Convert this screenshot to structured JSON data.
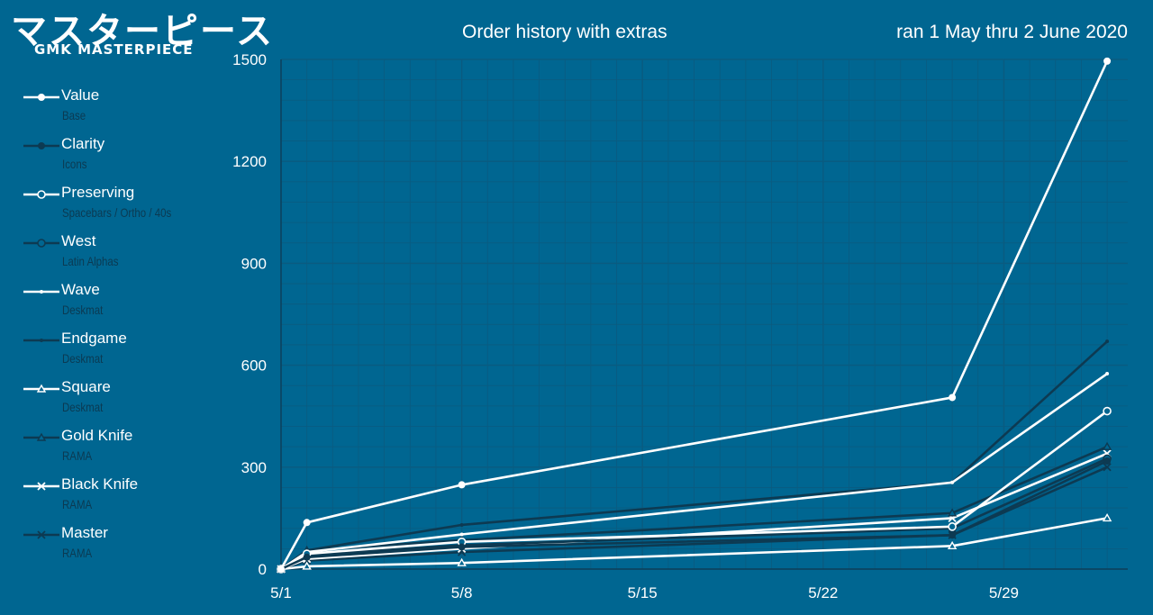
{
  "logo": {
    "japanese": "マスターピース",
    "english": "GMK MASTERPIECE"
  },
  "colors": {
    "background": "#006691",
    "white_series": "#ffffff",
    "dark_series": "#0d3a52",
    "grid": "#0a5b80"
  },
  "chart_data": {
    "type": "line",
    "title": "Order history with extras",
    "subtitle": "ran 1 May thru 2 June 2020",
    "xlabel": "",
    "ylabel": "",
    "x": [
      "5/1",
      "5/2",
      "5/8",
      "5/27",
      "6/2"
    ],
    "x_ticks": [
      "5/1",
      "5/8",
      "5/15",
      "5/22",
      "5/29"
    ],
    "y_ticks": [
      0,
      300,
      600,
      900,
      1200,
      1500
    ],
    "ylim": [
      0,
      1500
    ],
    "grid": true,
    "legend_placement": "left",
    "series": [
      {
        "name": "Value",
        "description": "Base",
        "color": "#ffffff",
        "marker": "dot",
        "values": [
          0,
          137,
          248,
          505,
          1495
        ]
      },
      {
        "name": "Clarity",
        "description": "Icons",
        "color": "#0d3a52",
        "marker": "dot",
        "values": [
          0,
          35,
          65,
          100,
          318
        ]
      },
      {
        "name": "Preserving",
        "description": "Spacebars / Ortho / 40s",
        "color": "#ffffff",
        "marker": "circle",
        "values": [
          0,
          45,
          80,
          125,
          465
        ]
      },
      {
        "name": "West",
        "description": "Latin Alphas",
        "color": "#0d3a52",
        "marker": "circle",
        "values": [
          0,
          42,
          70,
          120,
          325
        ]
      },
      {
        "name": "Wave",
        "description": "Deskmat",
        "color": "#ffffff",
        "marker": "small-dot",
        "values": [
          0,
          50,
          102,
          255,
          575
        ]
      },
      {
        "name": "Endgame",
        "description": "Deskmat",
        "color": "#0d3a52",
        "marker": "small-dot",
        "values": [
          0,
          55,
          130,
          255,
          670
        ]
      },
      {
        "name": "Square",
        "description": "Deskmat",
        "color": "#ffffff",
        "marker": "triangle",
        "values": [
          0,
          8,
          18,
          68,
          150
        ]
      },
      {
        "name": "Gold Knife",
        "description": "RAMA",
        "color": "#0d3a52",
        "marker": "triangle",
        "values": [
          0,
          55,
          85,
          165,
          360
        ]
      },
      {
        "name": "Black Knife",
        "description": "RAMA",
        "color": "#ffffff",
        "marker": "x",
        "values": [
          0,
          30,
          60,
          150,
          340
        ]
      },
      {
        "name": "Master",
        "description": "RAMA",
        "color": "#0d3a52",
        "marker": "x",
        "values": [
          0,
          25,
          50,
          100,
          300
        ]
      }
    ]
  }
}
